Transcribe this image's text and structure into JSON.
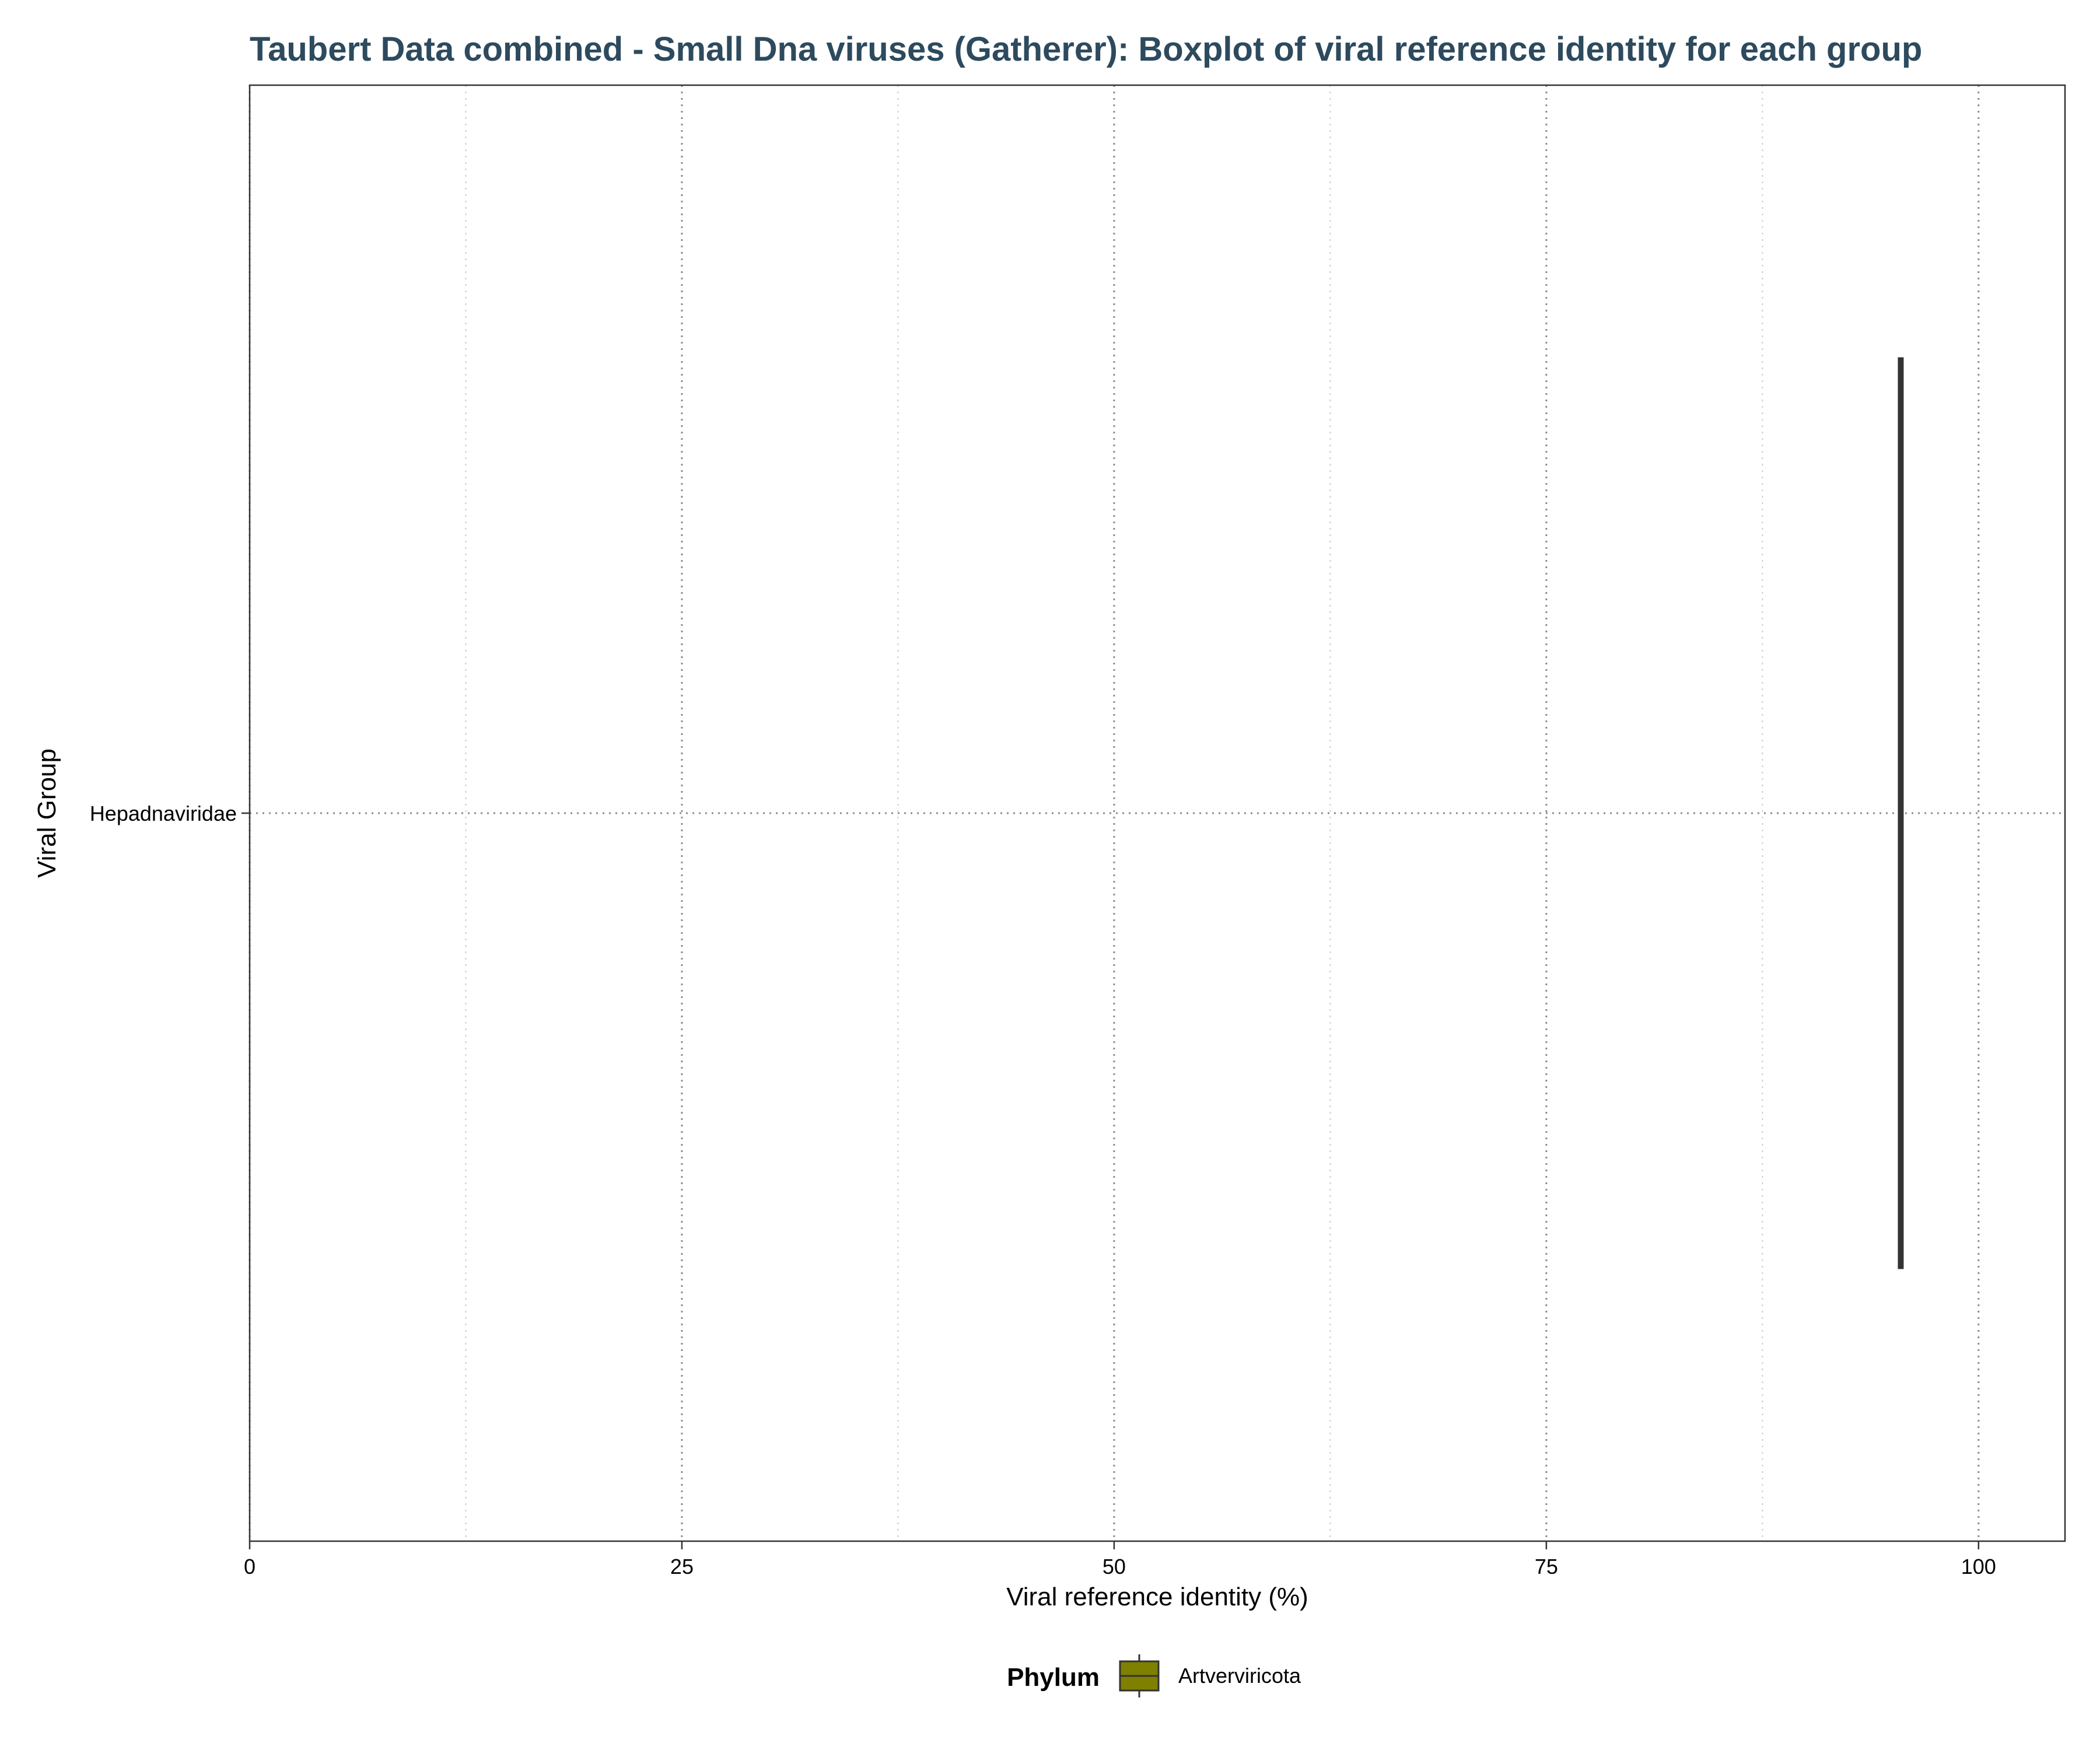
{
  "chart_data": {
    "type": "boxplot",
    "orientation": "horizontal",
    "title": "Taubert Data combined - Small Dna viruses (Gatherer): Boxplot of viral reference identity for each group",
    "xlabel": "Viral reference identity (%)",
    "ylabel": "Viral Group",
    "xlim": [
      0,
      105
    ],
    "x_ticks": [
      0,
      25,
      50,
      75,
      100
    ],
    "x_tick_labels": [
      "0",
      "25",
      "50",
      "75",
      "100"
    ],
    "x_minor_gridlines": [
      12.5,
      37.5,
      62.5,
      87.5
    ],
    "grid": true,
    "categories": [
      "Hepadnaviridae"
    ],
    "boxes": [
      {
        "category": "Hepadnaviridae",
        "phylum": "Artverviricota",
        "min": 95.5,
        "q1": 95.5,
        "median": 95.5,
        "q3": 95.5,
        "max": 95.5
      }
    ],
    "legend": {
      "title": "Phylum",
      "position": "bottom",
      "items": [
        {
          "label": "Artverviricota",
          "color": "#808000"
        }
      ]
    },
    "colors": {
      "title": "#2d4a5e",
      "box_line": "#333333",
      "major_grid": "#8c8c8c",
      "minor_grid": "#cccccc"
    }
  }
}
